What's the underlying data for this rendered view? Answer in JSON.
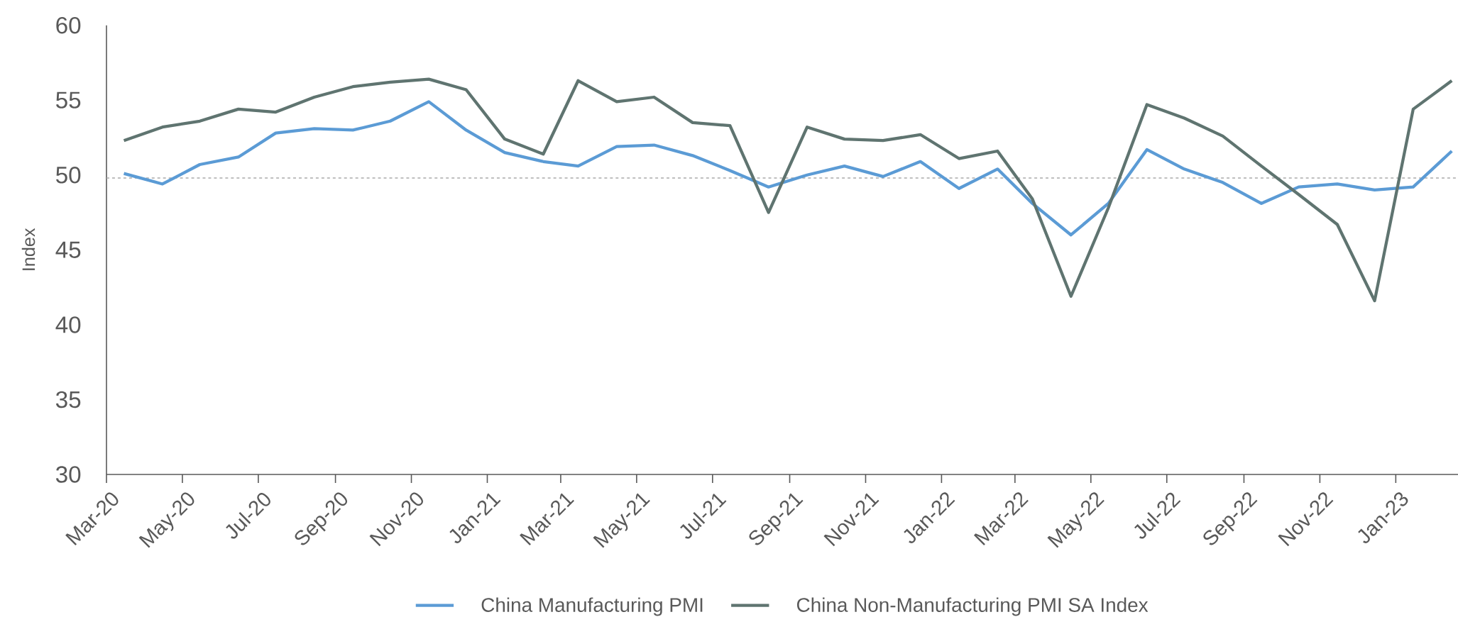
{
  "chart_data": {
    "type": "line",
    "ylabel": "Index",
    "x": [
      "2020-03-15",
      "2020-04-15",
      "2020-05-15",
      "2020-06-15",
      "2020-07-15",
      "2020-08-15",
      "2020-09-15",
      "2020-10-15",
      "2020-11-15",
      "2020-12-15",
      "2021-01-15",
      "2021-02-15",
      "2021-03-15",
      "2021-04-15",
      "2021-05-15",
      "2021-06-15",
      "2021-07-15",
      "2021-08-15",
      "2021-09-15",
      "2021-10-15",
      "2021-11-15",
      "2021-12-15",
      "2022-01-15",
      "2022-02-15",
      "2022-03-15",
      "2022-04-15",
      "2022-05-15",
      "2022-06-15",
      "2022-07-15",
      "2022-08-15",
      "2022-09-15",
      "2022-10-15",
      "2022-11-15",
      "2022-12-15",
      "2023-01-15",
      "2023-02-15"
    ],
    "series": [
      {
        "name": "China Manufacturing PMI",
        "color": "#5b9bd5",
        "values": [
          50.1,
          49.4,
          50.7,
          51.2,
          52.8,
          53.1,
          53.0,
          53.6,
          54.9,
          53.0,
          51.5,
          50.9,
          50.6,
          51.9,
          52.0,
          51.3,
          50.3,
          49.2,
          50.0,
          50.6,
          49.9,
          50.9,
          49.1,
          50.4,
          48.1,
          46.0,
          48.1,
          51.7,
          50.4,
          49.5,
          48.1,
          49.2,
          49.4,
          49.0,
          49.2,
          51.6
        ]
      },
      {
        "name": "China Non-Manufacturing PMI SA Index",
        "color": "#5f7470",
        "values": [
          52.3,
          53.2,
          53.6,
          54.4,
          54.2,
          55.2,
          55.9,
          56.2,
          56.4,
          55.7,
          52.4,
          51.4,
          56.3,
          54.9,
          55.2,
          53.5,
          53.3,
          47.5,
          53.2,
          52.4,
          52.3,
          52.7,
          51.1,
          51.6,
          48.4,
          41.9,
          47.8,
          54.7,
          53.8,
          52.6,
          50.6,
          48.7,
          46.7,
          41.6,
          54.4,
          56.3
        ]
      }
    ],
    "xlim": [
      "2020-03-01",
      "2023-02-20"
    ],
    "xticks": [
      {
        "value": "2020-03-01",
        "label": "Mar-20"
      },
      {
        "value": "2020-05-01",
        "label": "May-20"
      },
      {
        "value": "2020-07-01",
        "label": "Jul-20"
      },
      {
        "value": "2020-09-01",
        "label": "Sep-20"
      },
      {
        "value": "2020-11-01",
        "label": "Nov-20"
      },
      {
        "value": "2021-01-01",
        "label": "Jan-21"
      },
      {
        "value": "2021-03-01",
        "label": "Mar-21"
      },
      {
        "value": "2021-05-01",
        "label": "May-21"
      },
      {
        "value": "2021-07-01",
        "label": "Jul-21"
      },
      {
        "value": "2021-09-01",
        "label": "Sep-21"
      },
      {
        "value": "2021-11-01",
        "label": "Nov-21"
      },
      {
        "value": "2022-01-01",
        "label": "Jan-22"
      },
      {
        "value": "2022-03-01",
        "label": "Mar-22"
      },
      {
        "value": "2022-05-01",
        "label": "May-22"
      },
      {
        "value": "2022-07-01",
        "label": "Jul-22"
      },
      {
        "value": "2022-09-01",
        "label": "Sep-22"
      },
      {
        "value": "2022-11-01",
        "label": "Nov-22"
      },
      {
        "value": "2023-01-01",
        "label": "Jan-23"
      }
    ],
    "ylim": [
      30,
      60
    ],
    "yticks": [
      30,
      35,
      40,
      45,
      50,
      55,
      60
    ],
    "ref_lines": [
      {
        "axis": "y",
        "value": 49.8,
        "color": "#aaaaaa",
        "line_style": "dashed"
      }
    ],
    "grid": false,
    "legend": "bottom",
    "marker": "none",
    "line_style": "solid"
  }
}
